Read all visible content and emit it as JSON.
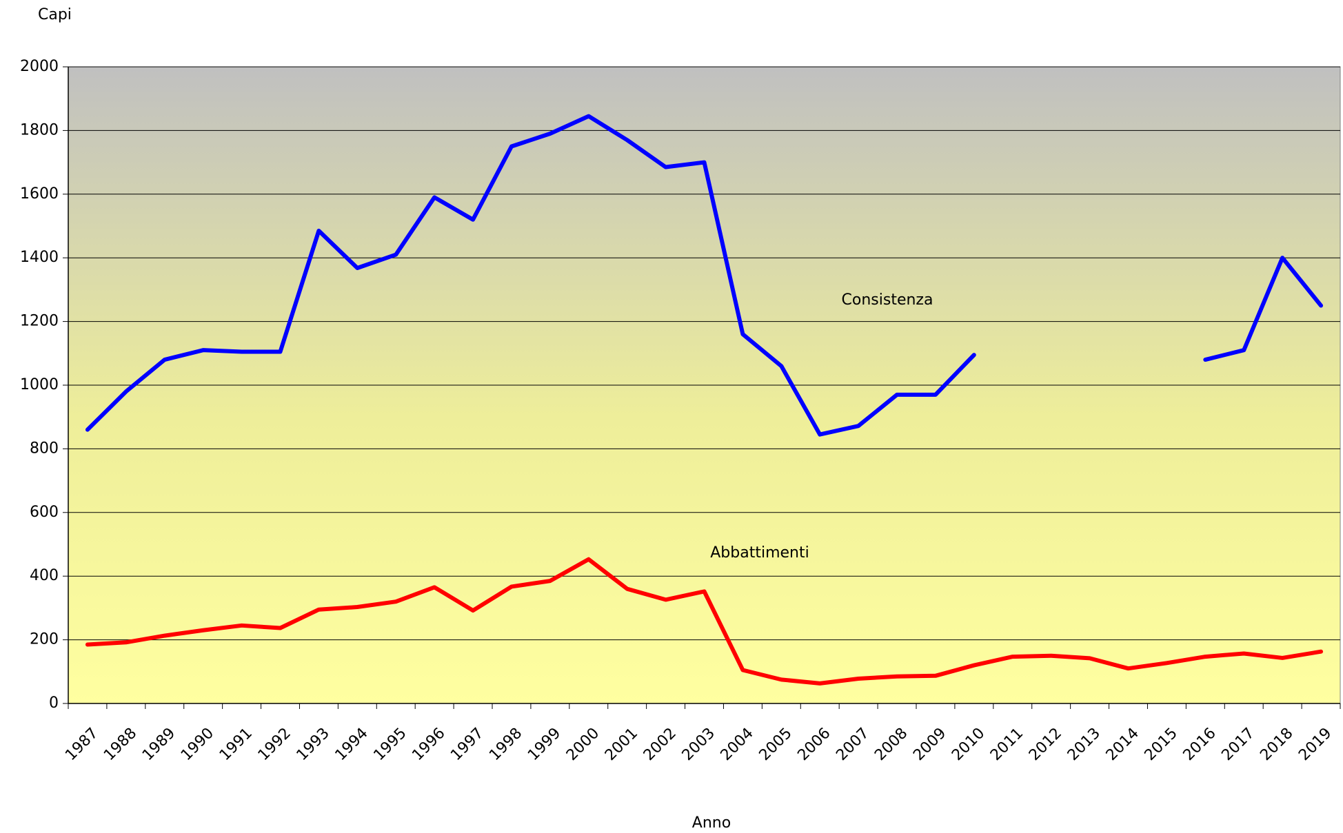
{
  "chart_data": {
    "type": "line",
    "ylabel": "Capi",
    "xlabel": "Anno",
    "annotations": [
      "Consistenza",
      "Abbattimenti"
    ],
    "categories": [
      "1987",
      "1988",
      "1989",
      "1990",
      "1991",
      "1992",
      "1993",
      "1994",
      "1995",
      "1996",
      "1997",
      "1998",
      "1999",
      "2000",
      "2001",
      "2002",
      "2003",
      "2004",
      "2005",
      "2006",
      "2007",
      "2008",
      "2009",
      "2010",
      "2011",
      "2012",
      "2013",
      "2014",
      "2015",
      "2016",
      "2017",
      "2018",
      "2019"
    ],
    "series": [
      {
        "name": "Consistenza",
        "color": "#0000ff",
        "values": [
          860,
          980,
          1080,
          1110,
          1105,
          1105,
          1485,
          1368,
          1410,
          1590,
          1520,
          1750,
          1790,
          1845,
          1770,
          1685,
          1700,
          1160,
          1060,
          845,
          872,
          970,
          970,
          1095,
          null,
          null,
          null,
          null,
          null,
          1080,
          1110,
          1400,
          1250
        ]
      },
      {
        "name": "Abbattimenti",
        "color": "#ff0000",
        "values": [
          185,
          192,
          213,
          230,
          245,
          237,
          295,
          303,
          320,
          365,
          292,
          367,
          385,
          453,
          360,
          326,
          352,
          105,
          75,
          63,
          78,
          85,
          87,
          120,
          147,
          150,
          142,
          110,
          127,
          147,
          157,
          143,
          163
        ]
      }
    ],
    "ylim": [
      0,
      2000
    ],
    "yticks": [
      0,
      200,
      400,
      600,
      800,
      1000,
      1200,
      1400,
      1600,
      1800,
      2000
    ],
    "grid": true
  }
}
